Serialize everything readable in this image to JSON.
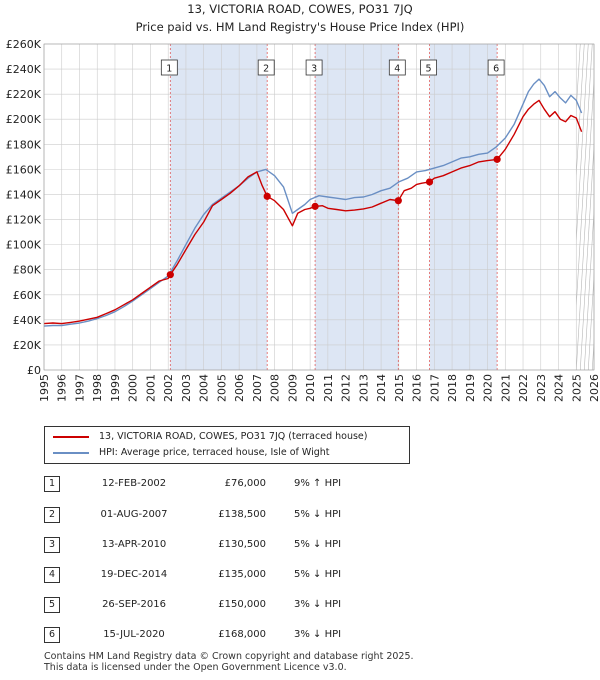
{
  "colors": {
    "price_line": "#cc0000",
    "hpi_line": "#6a8fc4",
    "shade": "#dde6f4",
    "marker_line": "#e06060",
    "grid": "#cccccc"
  },
  "chart_data": {
    "type": "line",
    "title": "13, VICTORIA ROAD, COWES, PO31 7JQ",
    "subtitle": "Price paid vs. HM Land Registry's House Price Index (HPI)",
    "xlim": [
      1995,
      2026
    ],
    "ylim": [
      0,
      260000
    ],
    "x_ticks": [
      1995,
      1996,
      1997,
      1998,
      1999,
      2000,
      2001,
      2002,
      2003,
      2004,
      2005,
      2006,
      2007,
      2008,
      2009,
      2010,
      2011,
      2012,
      2013,
      2014,
      2015,
      2016,
      2017,
      2018,
      2019,
      2020,
      2021,
      2022,
      2023,
      2024,
      2025,
      2026
    ],
    "x_tick_labels": [
      "1995",
      "1996",
      "1997",
      "1998",
      "1999",
      "2000",
      "2001",
      "2002",
      "2003",
      "2004",
      "2005",
      "2006",
      "2007",
      "2008",
      "2009",
      "2010",
      "2011",
      "2012",
      "2013",
      "2014",
      "2015",
      "2016",
      "2017",
      "2018",
      "2019",
      "2020",
      "2021",
      "2022",
      "2023",
      "2024",
      "2025",
      "2026"
    ],
    "y_ticks": [
      0,
      20000,
      40000,
      60000,
      80000,
      100000,
      120000,
      140000,
      160000,
      180000,
      200000,
      220000,
      240000,
      260000
    ],
    "y_tick_labels": [
      "£0",
      "£20K",
      "£40K",
      "£60K",
      "£80K",
      "£100K",
      "£120K",
      "£140K",
      "£160K",
      "£180K",
      "£200K",
      "£220K",
      "£240K",
      "£260K"
    ],
    "shaded_ranges": [
      [
        2002.12,
        2007.58
      ],
      [
        2010.28,
        2014.97
      ],
      [
        2016.73,
        2020.54
      ]
    ],
    "hatch_from": 2025.0,
    "series": [
      {
        "name": "13, VICTORIA ROAD, COWES, PO31 7JQ (terraced house)",
        "x": [
          1995,
          1995.5,
          1996,
          1996.5,
          1997,
          1997.5,
          1998,
          1998.5,
          1999,
          1999.5,
          2000,
          2000.5,
          2001,
          2001.5,
          2002,
          2002.12,
          2002.5,
          2003,
          2003.5,
          2004,
          2004.5,
          2005,
          2005.5,
          2006,
          2006.5,
          2007,
          2007.3,
          2007.58,
          2008,
          2008.5,
          2009,
          2009.3,
          2009.7,
          2010,
          2010.28,
          2010.7,
          2011,
          2011.5,
          2012,
          2012.5,
          2013,
          2013.5,
          2014,
          2014.5,
          2014.97,
          2015.3,
          2015.7,
          2016,
          2016.3,
          2016.73,
          2017,
          2017.5,
          2018,
          2018.5,
          2019,
          2019.5,
          2020,
          2020.54,
          2021,
          2021.5,
          2022,
          2022.3,
          2022.6,
          2022.9,
          2023.2,
          2023.5,
          2023.8,
          2024.1,
          2024.4,
          2024.7,
          2025,
          2025.3
        ],
        "values": [
          37000,
          37500,
          37000,
          38000,
          39000,
          40500,
          42000,
          45000,
          48000,
          52000,
          56000,
          61000,
          66000,
          71000,
          73000,
          76000,
          84000,
          96000,
          108000,
          118000,
          131000,
          136000,
          141000,
          147000,
          154000,
          158000,
          147000,
          138500,
          135000,
          128000,
          115000,
          125000,
          128000,
          129000,
          130500,
          131000,
          129000,
          128000,
          127000,
          127500,
          128500,
          130000,
          133000,
          136000,
          135000,
          143000,
          145000,
          148000,
          149000,
          150000,
          153000,
          155000,
          158000,
          161000,
          163000,
          166000,
          167000,
          168000,
          176000,
          188000,
          202000,
          208000,
          212000,
          215000,
          208000,
          202000,
          206000,
          200000,
          198000,
          203000,
          201000,
          190000
        ]
      },
      {
        "name": "HPI: Average price, terraced house, Isle of Wight",
        "x": [
          1995,
          1995.5,
          1996,
          1996.5,
          1997,
          1997.5,
          1998,
          1998.5,
          1999,
          1999.5,
          2000,
          2000.5,
          2001,
          2001.5,
          2002,
          2002.5,
          2003,
          2003.5,
          2004,
          2004.5,
          2005,
          2005.5,
          2006,
          2006.5,
          2007,
          2007.5,
          2008,
          2008.5,
          2009,
          2009.3,
          2009.7,
          2010,
          2010.5,
          2011,
          2011.5,
          2012,
          2012.5,
          2013,
          2013.5,
          2014,
          2014.5,
          2015,
          2015.5,
          2016,
          2016.5,
          2017,
          2017.5,
          2018,
          2018.5,
          2019,
          2019.5,
          2020,
          2020.5,
          2021,
          2021.5,
          2022,
          2022.3,
          2022.6,
          2022.9,
          2023.2,
          2023.5,
          2023.8,
          2024.1,
          2024.4,
          2024.7,
          2025,
          2025.3
        ],
        "values": [
          35000,
          35500,
          35500,
          36500,
          37500,
          39000,
          41000,
          43500,
          46500,
          50500,
          55000,
          60000,
          65000,
          70000,
          75000,
          87000,
          100000,
          113000,
          124000,
          132000,
          137000,
          142000,
          147000,
          153000,
          158000,
          160000,
          155000,
          146000,
          125000,
          128000,
          132000,
          136000,
          139000,
          138000,
          137000,
          136000,
          137500,
          138000,
          140000,
          143000,
          145000,
          150000,
          153000,
          158000,
          159000,
          161000,
          163000,
          166000,
          169000,
          170000,
          172000,
          173000,
          178000,
          185000,
          196000,
          212000,
          222000,
          228000,
          232000,
          227000,
          218000,
          222000,
          217000,
          213000,
          219000,
          215000,
          205000
        ]
      }
    ],
    "sales": [
      {
        "num": "1",
        "x": 2002.12,
        "price": 76000
      },
      {
        "num": "2",
        "x": 2007.58,
        "price": 138500
      },
      {
        "num": "3",
        "x": 2010.28,
        "price": 130500
      },
      {
        "num": "4",
        "x": 2014.97,
        "price": 135000
      },
      {
        "num": "5",
        "x": 2016.73,
        "price": 150000
      },
      {
        "num": "6",
        "x": 2020.54,
        "price": 168000
      }
    ]
  },
  "legend": {
    "price_label": "13, VICTORIA ROAD, COWES, PO31 7JQ (terraced house)",
    "hpi_label": "HPI: Average price, terraced house, Isle of Wight"
  },
  "sales_table": [
    {
      "num": "1",
      "date": "12-FEB-2002",
      "price": "£76,000",
      "hpi": "9% ↑ HPI"
    },
    {
      "num": "2",
      "date": "01-AUG-2007",
      "price": "£138,500",
      "hpi": "5% ↓ HPI"
    },
    {
      "num": "3",
      "date": "13-APR-2010",
      "price": "£130,500",
      "hpi": "5% ↓ HPI"
    },
    {
      "num": "4",
      "date": "19-DEC-2014",
      "price": "£135,000",
      "hpi": "5% ↓ HPI"
    },
    {
      "num": "5",
      "date": "26-SEP-2016",
      "price": "£150,000",
      "hpi": "3% ↓ HPI"
    },
    {
      "num": "6",
      "date": "15-JUL-2020",
      "price": "£168,000",
      "hpi": "3% ↓ HPI"
    }
  ],
  "footer": {
    "line1": "Contains HM Land Registry data © Crown copyright and database right 2025.",
    "line2": "This data is licensed under the Open Government Licence v3.0."
  }
}
